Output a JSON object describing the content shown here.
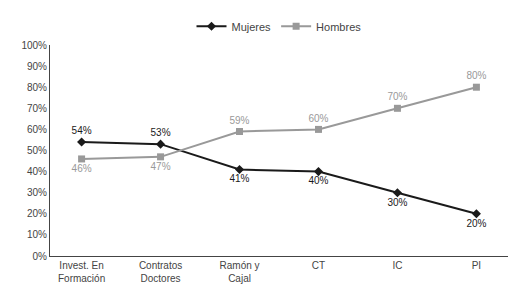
{
  "chart_data": {
    "type": "line",
    "categories": [
      "Invest. En\nFormación",
      "Contratos\nDoctores",
      "Ramón y\nCajal",
      "CT",
      "IC",
      "PI"
    ],
    "series": [
      {
        "name": "Mujeres",
        "color": "#1a1a1a",
        "marker": "diamond",
        "values": [
          54,
          53,
          41,
          40,
          30,
          20
        ],
        "value_labels": [
          "54%",
          "53%",
          "41%",
          "40%",
          "30%",
          "20%"
        ]
      },
      {
        "name": "Hombres",
        "color": "#999999",
        "marker": "square",
        "values": [
          46,
          47,
          59,
          60,
          70,
          80
        ],
        "value_labels": [
          "46%",
          "47%",
          "59%",
          "60%",
          "70%",
          "80%"
        ]
      }
    ],
    "ylim": [
      0,
      100
    ],
    "yticks": [
      {
        "value": 0,
        "label": "0%"
      },
      {
        "value": 10,
        "label": "10%"
      },
      {
        "value": 20,
        "label": "20%"
      },
      {
        "value": 30,
        "label": "30%"
      },
      {
        "value": 40,
        "label": "40%"
      },
      {
        "value": 50,
        "label": "50%"
      },
      {
        "value": 60,
        "label": "60%"
      },
      {
        "value": 70,
        "label": "70%"
      },
      {
        "value": 80,
        "label": "80%"
      },
      {
        "value": 90,
        "label": "90%"
      },
      {
        "value": 100,
        "label": "100%"
      }
    ],
    "data_labels": true,
    "grid": false,
    "legend": "upper center"
  }
}
